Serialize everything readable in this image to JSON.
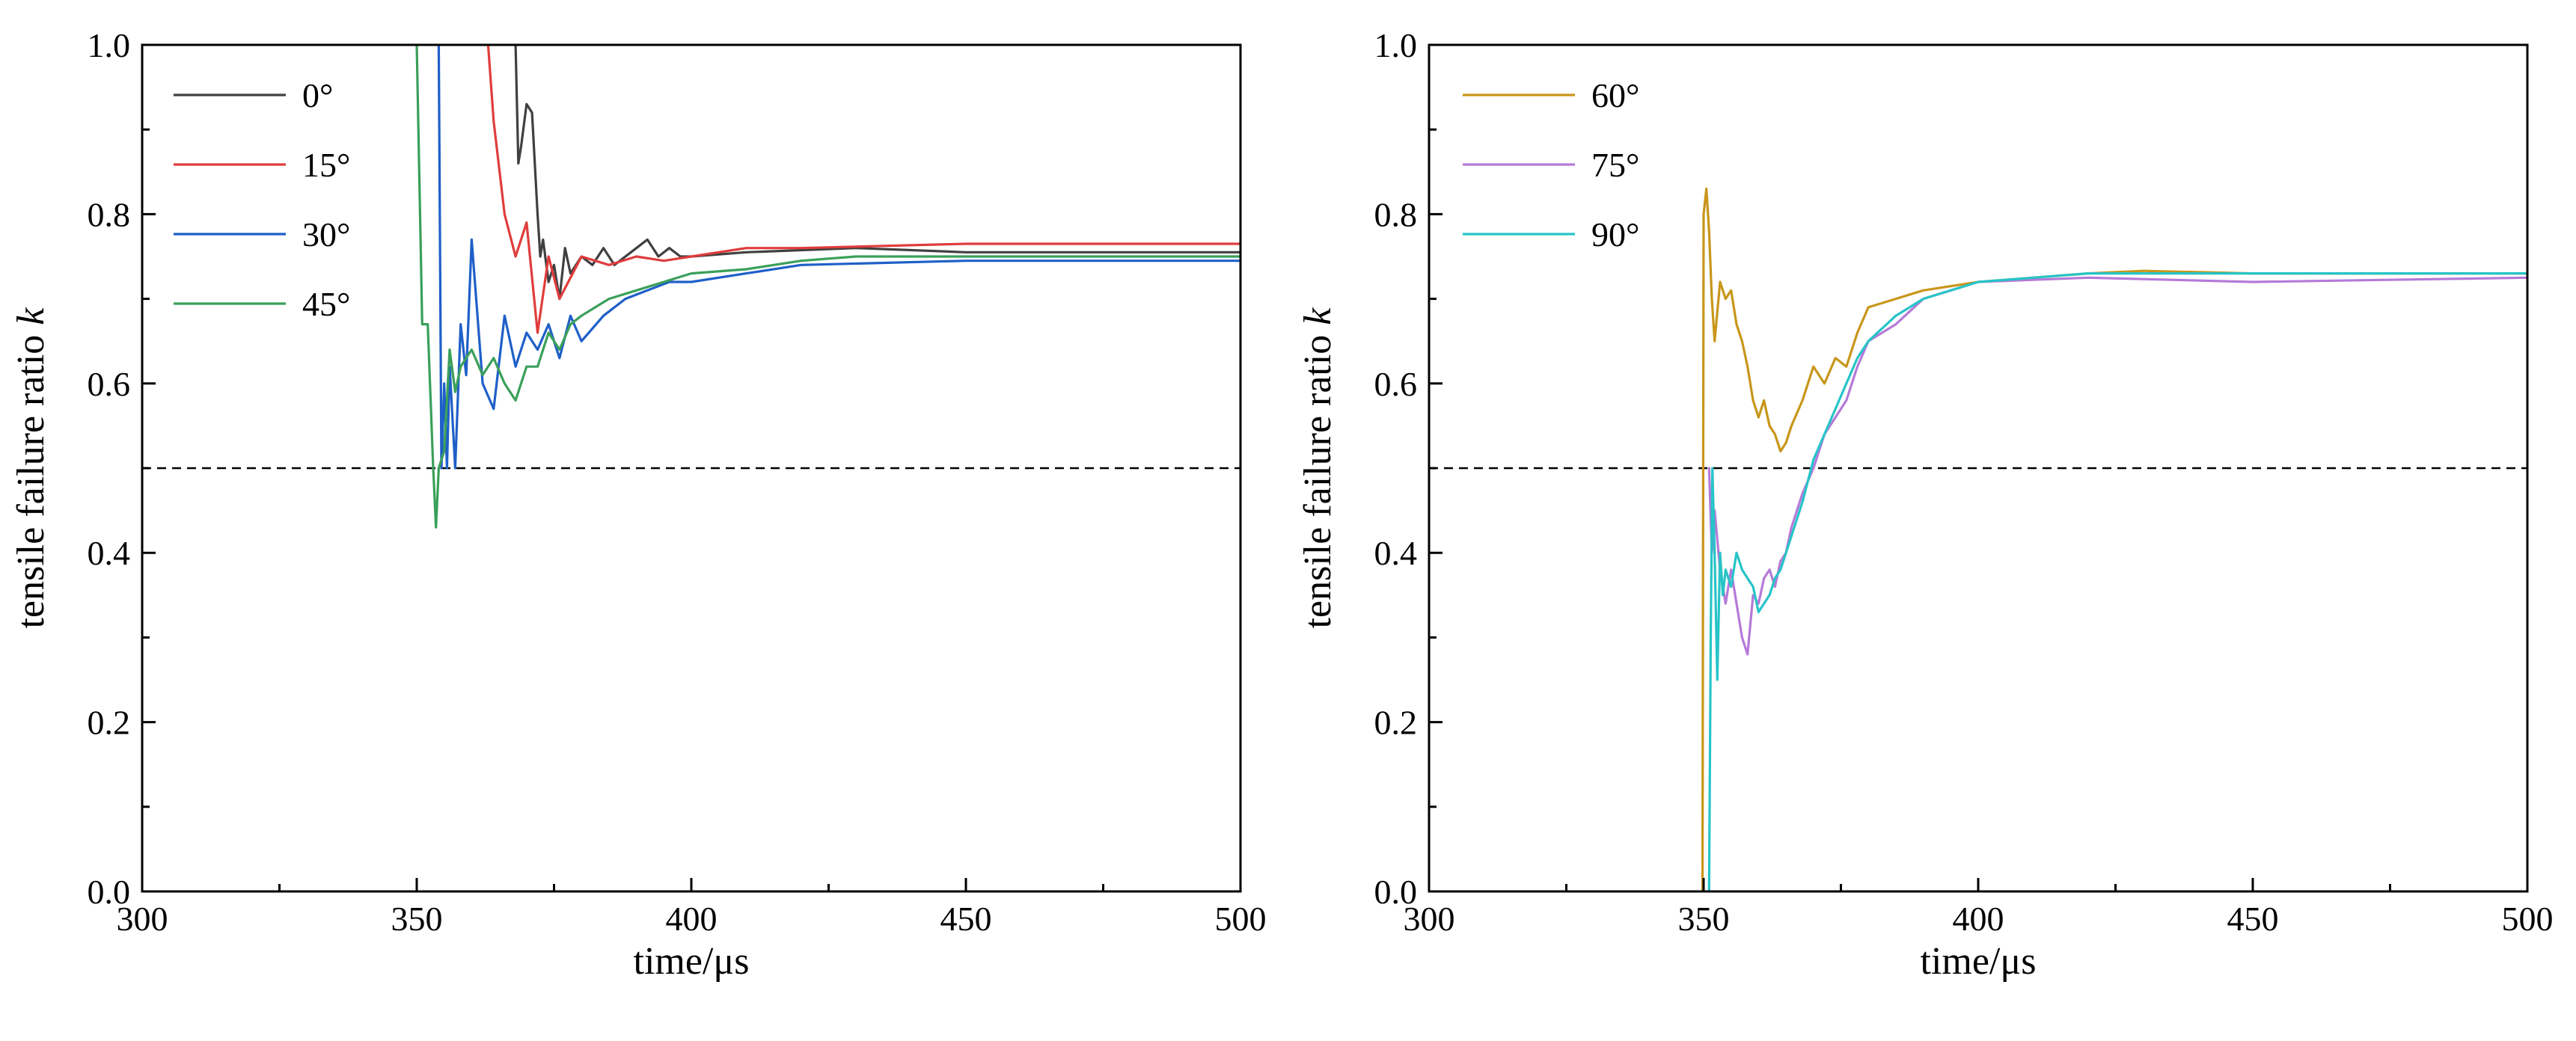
{
  "chart_data": [
    {
      "type": "line",
      "xlabel": "time/μs",
      "ylabel": "tensile failure ratio",
      "ylabel_italic": "k",
      "xlim": [
        300,
        500
      ],
      "ylim": [
        0.0,
        1.0
      ],
      "xticks": [
        "300",
        "350",
        "400",
        "450",
        "500"
      ],
      "yticks": [
        "0.0",
        "0.2",
        "0.4",
        "0.6",
        "0.8",
        "1.0"
      ],
      "reference_line": 0.5,
      "legend_position": "top-left",
      "series": [
        {
          "name": "0°",
          "color": "#404040",
          "x": [
            368,
            368.5,
            369,
            370,
            371,
            372,
            372.5,
            373,
            374,
            375,
            376,
            377,
            378,
            380,
            382,
            384,
            386,
            388,
            390,
            392,
            394,
            396,
            398,
            400,
            410,
            430,
            450,
            500
          ],
          "y": [
            1.0,
            0.86,
            0.88,
            0.93,
            0.92,
            0.8,
            0.75,
            0.77,
            0.72,
            0.74,
            0.7,
            0.76,
            0.73,
            0.75,
            0.74,
            0.76,
            0.74,
            0.75,
            0.76,
            0.77,
            0.75,
            0.76,
            0.75,
            0.75,
            0.755,
            0.76,
            0.755,
            0.755
          ]
        },
        {
          "name": "15°",
          "color": "#e03c3c",
          "x": [
            363,
            364,
            366,
            368,
            370,
            372,
            374,
            376,
            380,
            385,
            390,
            395,
            400,
            410,
            420,
            450,
            500
          ],
          "y": [
            1.0,
            0.91,
            0.8,
            0.75,
            0.79,
            0.66,
            0.75,
            0.7,
            0.75,
            0.74,
            0.75,
            0.745,
            0.75,
            0.76,
            0.76,
            0.765,
            0.765
          ]
        },
        {
          "name": "30°",
          "color": "#1f5fc8",
          "x": [
            354,
            354.5,
            355,
            355.5,
            356,
            357,
            358,
            359,
            360,
            362,
            364,
            366,
            368,
            370,
            372,
            374,
            376,
            378,
            380,
            384,
            388,
            392,
            396,
            400,
            410,
            420,
            450,
            500
          ],
          "y": [
            1.0,
            0.5,
            0.6,
            0.5,
            0.62,
            0.5,
            0.67,
            0.61,
            0.77,
            0.6,
            0.57,
            0.68,
            0.62,
            0.66,
            0.64,
            0.67,
            0.63,
            0.68,
            0.65,
            0.68,
            0.7,
            0.71,
            0.72,
            0.72,
            0.73,
            0.74,
            0.745,
            0.745
          ]
        },
        {
          "name": "45°",
          "color": "#3aa05a",
          "x": [
            350,
            351,
            352,
            353,
            353.5,
            354,
            355,
            356,
            357,
            358,
            360,
            362,
            364,
            366,
            368,
            370,
            372,
            374,
            376,
            378,
            380,
            385,
            390,
            395,
            400,
            410,
            420,
            430,
            450,
            500
          ],
          "y": [
            1.0,
            0.67,
            0.67,
            0.5,
            0.43,
            0.5,
            0.52,
            0.64,
            0.59,
            0.62,
            0.64,
            0.61,
            0.63,
            0.6,
            0.58,
            0.62,
            0.62,
            0.66,
            0.64,
            0.67,
            0.68,
            0.7,
            0.71,
            0.72,
            0.73,
            0.735,
            0.745,
            0.75,
            0.75,
            0.75
          ]
        }
      ]
    },
    {
      "type": "line",
      "xlabel": "time/μs",
      "ylabel": "tensile failure ratio",
      "ylabel_italic": "k",
      "xlim": [
        300,
        500
      ],
      "ylim": [
        0.0,
        1.0
      ],
      "xticks": [
        "300",
        "350",
        "400",
        "450",
        "500"
      ],
      "yticks": [
        "0.0",
        "0.2",
        "0.4",
        "0.6",
        "0.8",
        "1.0"
      ],
      "reference_line": 0.5,
      "legend_position": "top-left",
      "series": [
        {
          "name": "60°",
          "color": "#c8961a",
          "x": [
            349.8,
            350,
            350.5,
            351,
            351.5,
            352,
            353,
            354,
            355,
            356,
            357,
            358,
            359,
            360,
            361,
            362,
            363,
            364,
            365,
            366,
            368,
            370,
            372,
            374,
            376,
            378,
            380,
            385,
            390,
            400,
            410,
            420,
            430,
            450,
            500
          ],
          "y": [
            0.0,
            0.8,
            0.83,
            0.78,
            0.7,
            0.65,
            0.72,
            0.7,
            0.71,
            0.67,
            0.65,
            0.62,
            0.58,
            0.56,
            0.58,
            0.55,
            0.54,
            0.52,
            0.53,
            0.55,
            0.58,
            0.62,
            0.6,
            0.63,
            0.62,
            0.66,
            0.69,
            0.7,
            0.71,
            0.72,
            0.725,
            0.73,
            0.733,
            0.73,
            0.73
          ]
        },
        {
          "name": "75°",
          "color": "#b57ad8",
          "x": [
            351,
            351.5,
            352,
            353,
            354,
            355,
            356,
            357,
            358,
            359,
            360,
            361,
            362,
            363,
            364,
            365,
            366,
            368,
            370,
            372,
            374,
            376,
            378,
            380,
            385,
            390,
            400,
            420,
            450,
            500
          ],
          "y": [
            0.5,
            0.4,
            0.45,
            0.38,
            0.34,
            0.38,
            0.34,
            0.3,
            0.28,
            0.35,
            0.34,
            0.37,
            0.38,
            0.36,
            0.39,
            0.4,
            0.43,
            0.47,
            0.5,
            0.54,
            0.56,
            0.58,
            0.62,
            0.65,
            0.67,
            0.7,
            0.72,
            0.725,
            0.72,
            0.725
          ]
        },
        {
          "name": "90°",
          "color": "#27c4c8",
          "x": [
            351,
            351.3,
            351.6,
            352,
            352.5,
            353,
            353.5,
            354,
            355,
            356,
            357,
            358,
            359,
            360,
            361,
            362,
            363,
            364,
            365,
            366,
            368,
            370,
            372,
            374,
            376,
            378,
            380,
            385,
            390,
            395,
            400,
            410,
            420,
            450,
            500
          ],
          "y": [
            0.0,
            0.3,
            0.5,
            0.4,
            0.25,
            0.4,
            0.35,
            0.38,
            0.36,
            0.4,
            0.38,
            0.37,
            0.36,
            0.33,
            0.34,
            0.35,
            0.37,
            0.38,
            0.4,
            0.42,
            0.46,
            0.51,
            0.54,
            0.57,
            0.6,
            0.63,
            0.65,
            0.68,
            0.7,
            0.71,
            0.72,
            0.725,
            0.73,
            0.73,
            0.73
          ]
        }
      ]
    }
  ]
}
